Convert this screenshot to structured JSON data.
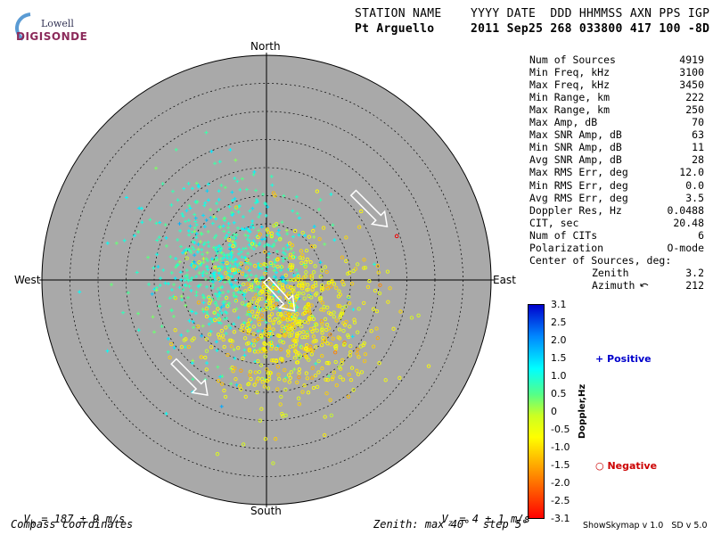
{
  "logo": {
    "line1": "Lowell",
    "line2": "DIGISONDE"
  },
  "header": {
    "columns": "STATION NAME    YYYY DATE  DDD HHMMSS AXN PPS IGP",
    "values": "Pt Arguello     2011 Sep25 268 033800 417 100 -8D"
  },
  "stats": [
    {
      "label": "Num of Sources",
      "value": "4919"
    },
    {
      "label": "Min Freq, kHz",
      "value": "3100"
    },
    {
      "label": "Max Freq, kHz",
      "value": "3450"
    },
    {
      "label": "Min Range, km",
      "value": "222"
    },
    {
      "label": "Max Range, km",
      "value": "250"
    },
    {
      "label": "Max Amp, dB",
      "value": "70"
    },
    {
      "label": "Max SNR Amp, dB",
      "value": "63"
    },
    {
      "label": "Min SNR Amp, dB",
      "value": "11"
    },
    {
      "label": "Avg SNR Amp, dB",
      "value": "28"
    },
    {
      "label": "Max RMS Err, deg",
      "value": "12.0"
    },
    {
      "label": "Min RMS Err, deg",
      "value": "0.0"
    },
    {
      "label": "Avg RMS Err, deg",
      "value": "3.5"
    },
    {
      "label": "Doppler Res, Hz",
      "value": "0.0488"
    },
    {
      "label": "CIT, sec",
      "value": "20.48"
    },
    {
      "label": "Num of CITs",
      "value": "6"
    },
    {
      "label": "Polarization",
      "value": "O-mode"
    }
  ],
  "center": {
    "heading": "Center of Sources, deg:",
    "zenith_label": "Zenith",
    "zenith_value": "3.2",
    "azimuth_label": "Azimuth",
    "azimuth_value": "212"
  },
  "compass": {
    "north": "North",
    "south": "South",
    "east": "East",
    "west": "West"
  },
  "footer": {
    "vh_sym": "V",
    "vh_sub": "h",
    "vh_val": " = 187 ± 9 m/s",
    "vz_sym": "V",
    "vz_sub": "z",
    "vz_val": " = 4 ± 1 m/s",
    "coords": "Compass coordinates",
    "zenith": "Zenith: max 40°  step 5°",
    "version": "ShowSkymap v 1.0   SD v 5.0"
  },
  "legend": {
    "positive": "Positive",
    "negative": "Negative",
    "positive_color": "#0000cc",
    "negative_color": "#cc0000"
  },
  "colorbar": {
    "title": "Doppler,Hz",
    "ticks": [
      "3.1",
      "2.5",
      "2.0",
      "1.5",
      "1.0",
      "0.5",
      "0",
      "-0.5",
      "-1.0",
      "-1.5",
      "-2.0",
      "-2.5",
      "-3.1"
    ],
    "range": [
      -3.1,
      3.1
    ],
    "colors": [
      "#ff0000",
      "#ff8800",
      "#ffff00",
      "#ccff22",
      "#55ff88",
      "#00ffff",
      "#0088ff",
      "#0000cc"
    ]
  },
  "chart_data": {
    "type": "scatter",
    "title": "",
    "projection": "polar skymap, compass coordinates",
    "zenith_max_deg": 40,
    "zenith_step_deg": 5,
    "clusters": [
      {
        "name": "Positive",
        "marker": "+",
        "center_east_deg": -7,
        "center_north_deg": 1.5,
        "spread_deg": 7,
        "doppler_hz": 0.9
      },
      {
        "name": "Negative",
        "marker": "o",
        "center_east_deg": 4,
        "center_north_deg": -7,
        "spread_deg": 7,
        "doppler_hz": -0.8
      }
    ],
    "arrows": [
      {
        "from_east_deg": 15.5,
        "from_north_deg": 15.5,
        "to_east_deg": 21.5,
        "to_north_deg": 9.5
      },
      {
        "from_east_deg": 0,
        "from_north_deg": 0,
        "to_east_deg": 5,
        "to_north_deg": -5.5
      },
      {
        "from_east_deg": -16.5,
        "from_north_deg": -14.5,
        "to_east_deg": -10.5,
        "to_north_deg": -20.5
      }
    ]
  }
}
